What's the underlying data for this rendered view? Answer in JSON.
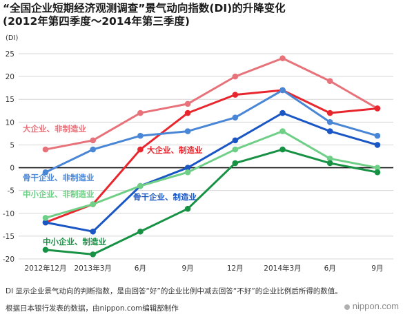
{
  "header": {
    "title_line1": "“全国企业短期经济观测调查”景气动向指数(DI)的升降变化",
    "title_line2": "(2012年第四季度～2014年第三季度)"
  },
  "footer": {
    "note": "DI 显示企业景气动向的判断指数，是由回答“好”的企业比例中减去回答“不好”的企业比例后所得的数值。",
    "source": "根据日本银行发表的数据，由nippon.com编辑部制作",
    "brand": "nippon.com"
  },
  "chart_data": {
    "type": "line",
    "ylabel": "(DI)",
    "ylim": [
      -20,
      25
    ],
    "yticks": [
      -20,
      -15,
      -10,
      -5,
      0,
      5,
      10,
      15,
      20,
      25
    ],
    "grid": true,
    "categories": [
      "2012年12月",
      "2013年3月",
      "6月",
      "9月",
      "12月",
      "2014年3月",
      "6月",
      "9月"
    ],
    "series": [
      {
        "name": "大企业、非制造业",
        "color": "#e8727a",
        "values": [
          4,
          6,
          12,
          14,
          20,
          24,
          19,
          13
        ]
      },
      {
        "name": "大企业、制造业",
        "color": "#e8262e",
        "values": [
          -12,
          -8,
          4,
          12,
          16,
          17,
          12,
          13
        ]
      },
      {
        "name": "骨干企业、非制造业",
        "color": "#4a86d6",
        "values": [
          -1,
          4,
          7,
          8,
          11,
          17,
          10,
          7
        ]
      },
      {
        "name": "骨干企业、制造业",
        "color": "#1a56c4",
        "values": [
          -12,
          -14,
          -4,
          0,
          6,
          12,
          8,
          5
        ]
      },
      {
        "name": "中小企业、非制造业",
        "color": "#6fcf86",
        "values": [
          -11,
          -8,
          -4,
          -1,
          4,
          8,
          2,
          0
        ]
      },
      {
        "name": "中小企业、制造业",
        "color": "#179144",
        "values": [
          -18,
          -19,
          -14,
          -9,
          1,
          4,
          1,
          -1
        ]
      }
    ]
  }
}
